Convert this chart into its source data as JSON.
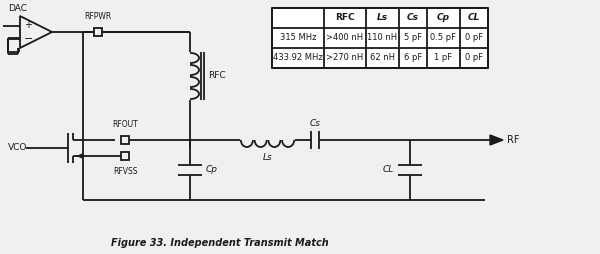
{
  "title": "Figure 33. Independent Transmit Match",
  "bg_color": "#f0f0f0",
  "line_color": "#1a1a1a",
  "table_header": [
    "",
    "RFC",
    "Ls",
    "Cs",
    "Cp",
    "CL"
  ],
  "table_row1": [
    "315 MHz",
    ">400 nH",
    "110 nH",
    "5 pF",
    "0.5 pF",
    "0 pF"
  ],
  "table_row2": [
    "433.92 MHz",
    ">270 nH",
    "62 nH",
    "6 pF",
    "1 pF",
    "0 pF"
  ],
  "lw": 1.3
}
